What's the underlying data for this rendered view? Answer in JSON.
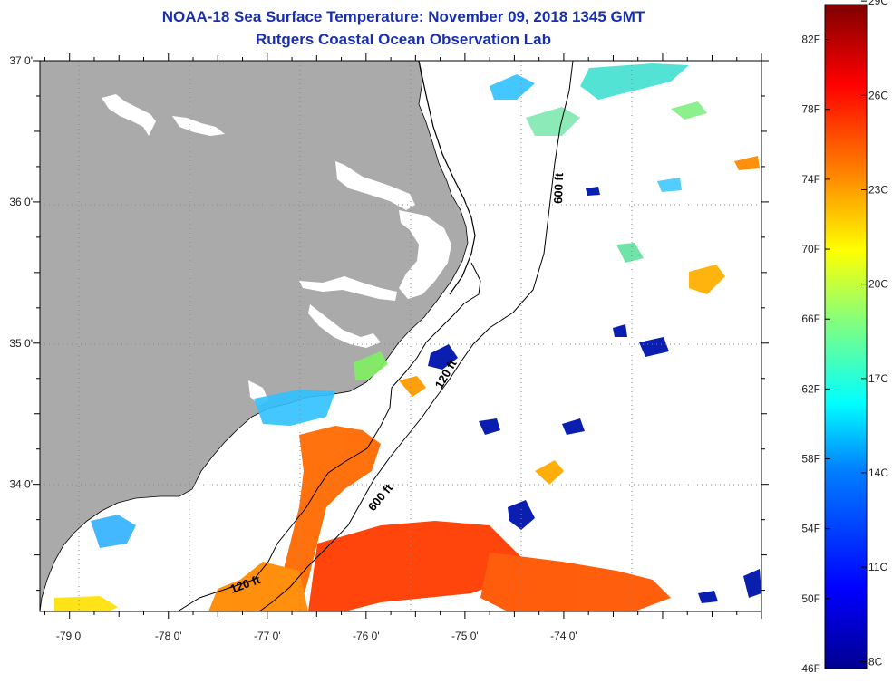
{
  "header": {
    "title": "NOAA-18 Sea Surface Temperature:  November 09, 2018 1345 GMT",
    "subtitle": "Rutgers Coastal Ocean Observation Lab"
  },
  "map": {
    "lon_range": [
      -79.3,
      -72.0
    ],
    "lat_range": [
      33.1,
      37.0
    ],
    "lon_ticks": [
      {
        "value": -79,
        "label": "-79 0'"
      },
      {
        "value": -78,
        "label": "-78 0'"
      },
      {
        "value": -77,
        "label": "-77 0'"
      },
      {
        "value": -76,
        "label": "-76 0'"
      },
      {
        "value": -75,
        "label": "-75 0'"
      },
      {
        "value": -74,
        "label": "-74 0'"
      }
    ],
    "lat_ticks": [
      {
        "value": 37,
        "label": "37 0'"
      },
      {
        "value": 36,
        "label": "36 0'"
      },
      {
        "value": 35,
        "label": "35 0'"
      },
      {
        "value": 34,
        "label": "34 0'"
      }
    ],
    "contour_labels": [
      "600 ft",
      "120 ft",
      "600 ft",
      "120 ft"
    ],
    "land_color": "#aaaaaa",
    "ocean_color": "#ffffff"
  },
  "colorbar": {
    "min_f": 46,
    "max_f": 84,
    "f_labels": [
      "82F",
      "78F",
      "74F",
      "70F",
      "66F",
      "62F",
      "58F",
      "54F",
      "50F",
      "46F"
    ],
    "c_labels": [
      "29C",
      "26C",
      "23C",
      "20C",
      "17C",
      "14C",
      "11C",
      "8C"
    ],
    "colors": [
      "#00008f",
      "#0000ff",
      "#0080ff",
      "#00ffff",
      "#80ff80",
      "#ffff00",
      "#ff8000",
      "#ff0000",
      "#800000"
    ]
  }
}
